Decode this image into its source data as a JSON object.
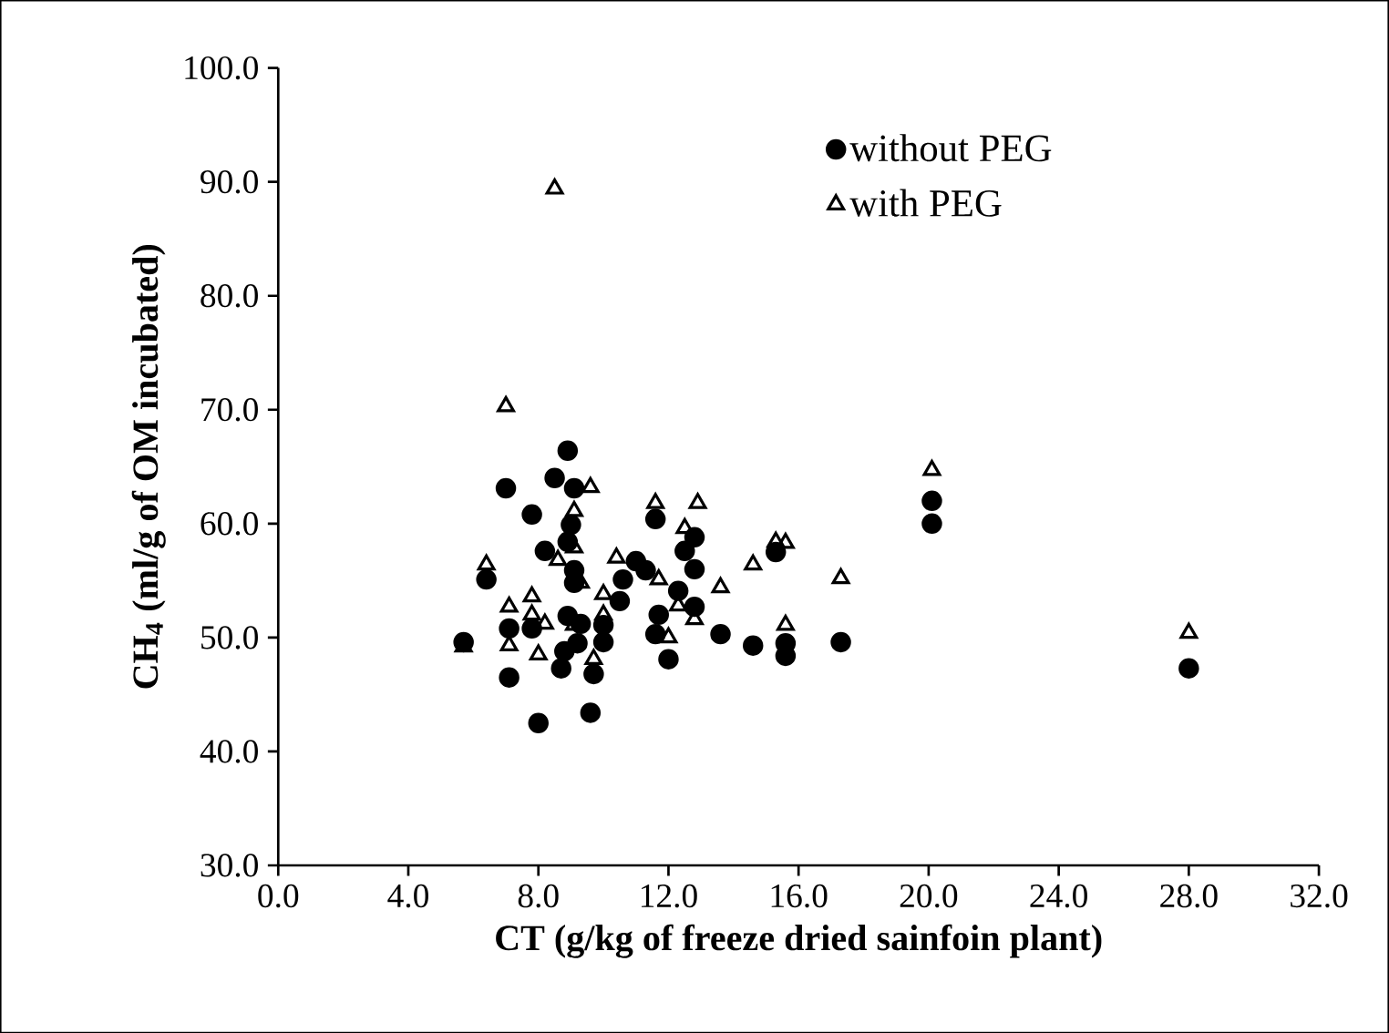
{
  "chart_data": {
    "type": "scatter",
    "xlabel": "CT (g/kg of freeze dried sainfoin plant)",
    "ylabel": "CH$_{4}$ (ml/g of OM incubated)",
    "xlim": [
      0,
      32
    ],
    "ylim": [
      30,
      100
    ],
    "xticks": [
      {
        "value": 0,
        "label": "0.0"
      },
      {
        "value": 4,
        "label": "4.0"
      },
      {
        "value": 8,
        "label": "8.0"
      },
      {
        "value": 12,
        "label": "12.0"
      },
      {
        "value": 16,
        "label": "16.0"
      },
      {
        "value": 20,
        "label": "20.0"
      },
      {
        "value": 24,
        "label": "24.0"
      },
      {
        "value": 28,
        "label": "28.0"
      },
      {
        "value": 32,
        "label": "32.0"
      }
    ],
    "yticks": [
      {
        "value": 30,
        "label": "30.0"
      },
      {
        "value": 40,
        "label": "40.0"
      },
      {
        "value": 50,
        "label": "50.0"
      },
      {
        "value": 60,
        "label": "60.0"
      },
      {
        "value": 70,
        "label": "70.0"
      },
      {
        "value": 80,
        "label": "80.0"
      },
      {
        "value": 90,
        "label": "90.0"
      },
      {
        "value": 100,
        "label": "100.0"
      }
    ],
    "legend": "top right",
    "grid": false,
    "series": [
      {
        "name": "without PEG",
        "color": "#000000",
        "marker": "circle",
        "x": [
          5.7,
          8.9,
          8.5,
          7.0,
          9.1,
          7.8,
          9.0,
          8.9,
          8.2,
          11.6,
          12.8,
          12.5,
          12.8,
          6.4,
          9.1,
          9.1,
          11.0,
          11.3,
          10.6,
          10.5,
          12.3,
          12.8,
          11.7,
          8.9,
          7.1,
          7.8,
          9.3,
          10.0,
          10.0,
          11.6,
          13.6,
          14.6,
          8.8,
          9.2,
          9.7,
          8.7,
          12.0,
          7.1,
          8.0,
          9.6,
          15.3,
          15.6,
          15.6,
          17.3,
          20.1,
          20.1,
          28.0
        ],
        "values": [
          49.6,
          66.4,
          64.0,
          63.1,
          63.1,
          60.8,
          59.9,
          58.4,
          57.6,
          60.4,
          58.8,
          57.6,
          56.0,
          55.1,
          55.9,
          54.8,
          56.7,
          55.9,
          55.1,
          53.2,
          54.1,
          52.7,
          52.0,
          51.9,
          50.8,
          50.8,
          51.2,
          51.1,
          49.6,
          50.3,
          50.3,
          49.3,
          48.8,
          49.5,
          46.8,
          47.3,
          48.1,
          46.5,
          42.5,
          43.4,
          57.5,
          49.5,
          48.4,
          49.6,
          62.0,
          60.0,
          47.3
        ]
      },
      {
        "name": "with PEG",
        "color": "#000000",
        "marker": "triangle",
        "x": [
          8.5,
          7.0,
          9.6,
          11.6,
          12.9,
          9.1,
          12.5,
          9.1,
          8.6,
          10.4,
          14.6,
          9.3,
          11.0,
          11.7,
          13.6,
          10.0,
          7.8,
          7.1,
          12.3,
          7.8,
          8.2,
          10.0,
          12.8,
          5.7,
          7.1,
          8.0,
          12.0,
          9.7,
          9.1,
          6.4,
          15.3,
          15.6,
          15.6,
          17.3,
          20.1,
          28.0
        ],
        "values": [
          89.4,
          70.3,
          63.2,
          61.8,
          61.8,
          61.1,
          59.6,
          57.9,
          56.8,
          57.0,
          56.4,
          54.8,
          null,
          55.1,
          54.4,
          53.8,
          53.6,
          52.7,
          52.8,
          52.0,
          51.2,
          52.0,
          51.6,
          49.2,
          49.3,
          48.5,
          50.0,
          48.1,
          51.1,
          56.4,
          58.4,
          58.3,
          51.1,
          55.2,
          64.7,
          50.4
        ]
      }
    ]
  }
}
